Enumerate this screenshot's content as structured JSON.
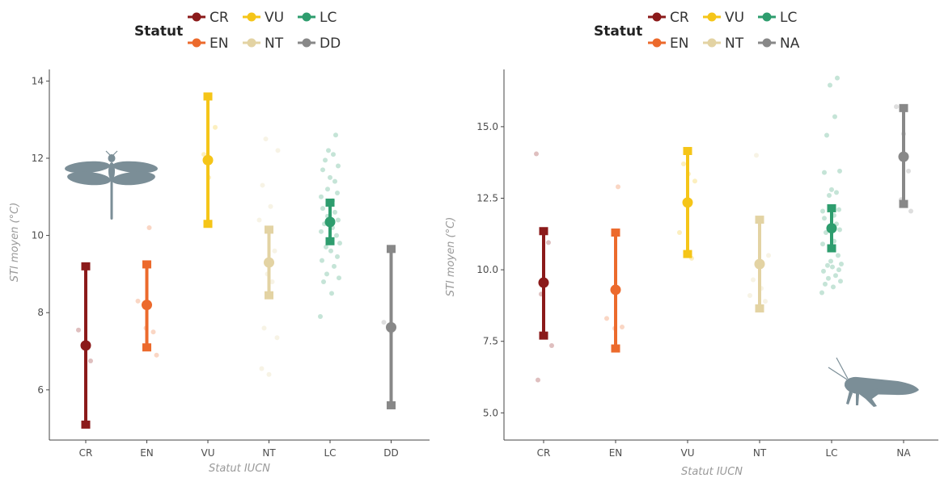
{
  "chart_data": [
    {
      "type": "scatter",
      "title": "",
      "xlabel": "Statut IUCN",
      "ylabel": "STI moyen (°C)",
      "ylim": [
        4.7,
        14.3
      ],
      "yticks": [
        "6",
        "8",
        "10",
        "12",
        "14"
      ],
      "ytick_values": [
        6,
        8,
        10,
        12,
        14
      ],
      "categories": [
        "CR",
        "EN",
        "VU",
        "NT",
        "LC",
        "DD"
      ],
      "grid": false,
      "legend": {
        "title": "Statut",
        "position": "top-center",
        "entries": [
          {
            "label": "CR",
            "color": "#8b1a1a"
          },
          {
            "label": "VU",
            "color": "#f5c518"
          },
          {
            "label": "LC",
            "color": "#2e9d6e"
          },
          {
            "label": "EN",
            "color": "#ec6a2c"
          },
          {
            "label": "NT",
            "color": "#e3d3a3"
          },
          {
            "label": "DD",
            "color": "#888888"
          }
        ]
      },
      "series": [
        {
          "category": "CR",
          "color": "#8b1a1a",
          "mean": 7.15,
          "lower": 5.1,
          "upper": 9.2,
          "points": [
            7.55,
            6.75
          ]
        },
        {
          "category": "EN",
          "color": "#ec6a2c",
          "mean": 8.2,
          "lower": 7.1,
          "upper": 9.25,
          "points": [
            10.2,
            8.3,
            7.5,
            7.6,
            6.9
          ]
        },
        {
          "category": "VU",
          "color": "#f5c518",
          "mean": 11.95,
          "lower": 10.3,
          "upper": 13.6,
          "points": [
            12.1,
            11.5,
            12.8
          ]
        },
        {
          "category": "NT",
          "color": "#e3d3a3",
          "mean": 9.3,
          "lower": 8.45,
          "upper": 10.15,
          "points": [
            12.5,
            12.2,
            11.3,
            10.75,
            10.4,
            9.6,
            9.0,
            8.8,
            7.6,
            7.35,
            6.55,
            6.4
          ]
        },
        {
          "category": "LC",
          "color": "#2e9d6e",
          "mean": 10.35,
          "lower": 9.85,
          "upper": 10.85,
          "points": [
            12.6,
            12.2,
            12.1,
            11.95,
            11.8,
            11.7,
            11.5,
            11.4,
            11.2,
            11.1,
            11.0,
            10.9,
            10.7,
            10.6,
            10.5,
            10.4,
            10.3,
            10.2,
            10.1,
            10.0,
            9.9,
            9.8,
            9.7,
            9.6,
            9.45,
            9.35,
            9.2,
            9.0,
            8.9,
            8.8,
            8.5,
            7.9
          ]
        },
        {
          "category": "DD",
          "color": "#888888",
          "mean": 7.62,
          "lower": 5.6,
          "upper": 9.65,
          "points": [
            7.75,
            7.5
          ]
        }
      ]
    },
    {
      "type": "scatter",
      "title": "",
      "xlabel": "Statut IUCN",
      "ylabel": "STI moyen (°C)",
      "ylim": [
        4.05,
        17.0
      ],
      "yticks": [
        "5.0",
        "7.5",
        "10.0",
        "12.5",
        "15.0"
      ],
      "ytick_values": [
        5.0,
        7.5,
        10.0,
        12.5,
        15.0
      ],
      "categories": [
        "CR",
        "EN",
        "VU",
        "NT",
        "LC",
        "NA"
      ],
      "grid": false,
      "legend": {
        "title": "Statut",
        "position": "top-center",
        "entries": [
          {
            "label": "CR",
            "color": "#8b1a1a"
          },
          {
            "label": "VU",
            "color": "#f5c518"
          },
          {
            "label": "LC",
            "color": "#2e9d6e"
          },
          {
            "label": "EN",
            "color": "#ec6a2c"
          },
          {
            "label": "NT",
            "color": "#e3d3a3"
          },
          {
            "label": "NA",
            "color": "#888888"
          }
        ]
      },
      "series": [
        {
          "category": "CR",
          "color": "#8b1a1a",
          "mean": 9.55,
          "lower": 7.7,
          "upper": 11.35,
          "points": [
            14.05,
            10.95,
            9.15,
            7.35,
            6.15
          ]
        },
        {
          "category": "EN",
          "color": "#ec6a2c",
          "mean": 9.3,
          "lower": 7.25,
          "upper": 11.3,
          "points": [
            12.9,
            8.3,
            8.0,
            7.95
          ]
        },
        {
          "category": "VU",
          "color": "#f5c518",
          "mean": 12.35,
          "lower": 10.55,
          "upper": 14.15,
          "points": [
            13.7,
            13.35,
            13.1,
            11.3,
            10.4
          ]
        },
        {
          "category": "NT",
          "color": "#e3d3a3",
          "mean": 10.2,
          "lower": 8.65,
          "upper": 11.75,
          "points": [
            14.0,
            10.5,
            9.65,
            9.35,
            9.1,
            8.9
          ]
        },
        {
          "category": "LC",
          "color": "#2e9d6e",
          "mean": 11.45,
          "lower": 10.75,
          "upper": 12.15,
          "points": [
            16.7,
            16.45,
            15.35,
            14.7,
            13.45,
            13.4,
            12.8,
            12.7,
            12.6,
            12.1,
            12.05,
            11.9,
            11.8,
            11.6,
            11.5,
            11.4,
            11.3,
            11.0,
            10.9,
            10.5,
            10.3,
            10.2,
            10.15,
            10.1,
            10.0,
            9.95,
            9.8,
            9.7,
            9.6,
            9.5,
            9.4,
            9.2
          ]
        },
        {
          "category": "NA",
          "color": "#888888",
          "mean": 13.95,
          "lower": 12.3,
          "upper": 15.65,
          "points": [
            15.7,
            14.75,
            13.45,
            12.45,
            12.05
          ]
        }
      ]
    }
  ]
}
